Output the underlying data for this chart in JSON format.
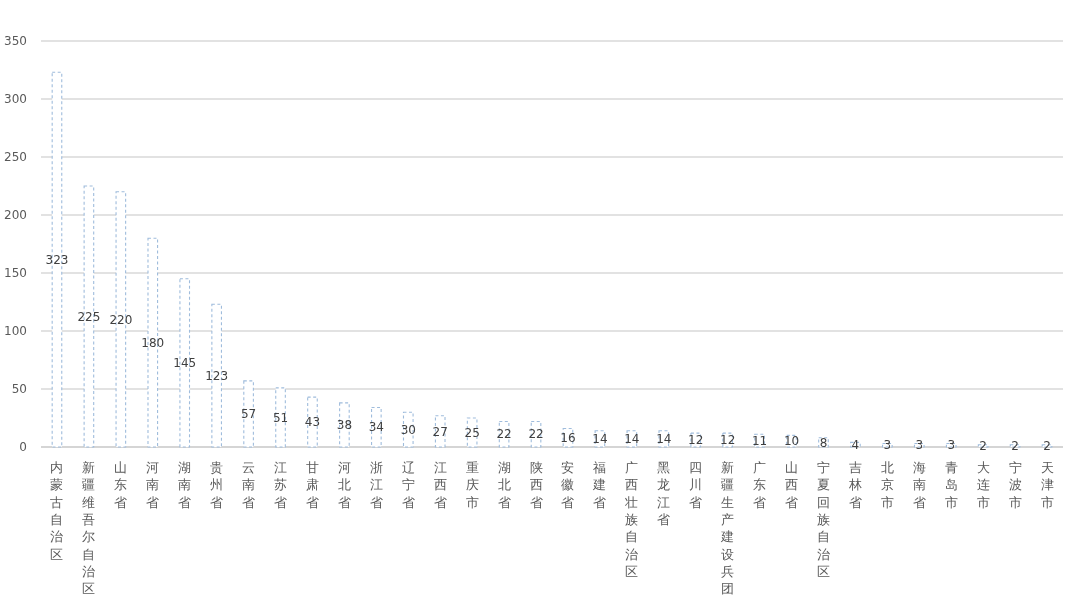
{
  "chart_data": {
    "type": "bar",
    "categories": [
      "内蒙古自治区",
      "新疆维吾尔自治区",
      "山东省",
      "河南省",
      "湖南省",
      "贵州省",
      "云南省",
      "江苏省",
      "甘肃省",
      "河北省",
      "浙江省",
      "辽宁省",
      "江西省",
      "重庆市",
      "湖北省",
      "陕西省",
      "安徽省",
      "福建省",
      "广西壮族自治区",
      "黑龙江省",
      "四川省",
      "新疆生产建设兵团",
      "广东省",
      "山西省",
      "宁夏回族自治区",
      "吉林省",
      "北京市",
      "海南省",
      "青岛市",
      "大连市",
      "宁波市",
      "天津市"
    ],
    "values": [
      323,
      225,
      220,
      180,
      145,
      123,
      57,
      51,
      43,
      38,
      34,
      30,
      27,
      25,
      22,
      22,
      16,
      14,
      14,
      14,
      12,
      12,
      11,
      10,
      8,
      4,
      3,
      3,
      3,
      2,
      2,
      2
    ],
    "color": "#9fbcdc",
    "ylim": [
      0,
      350
    ],
    "yticks": [
      0,
      50,
      100,
      150,
      200,
      250,
      300,
      350
    ],
    "grid": "y",
    "data_labels": true
  }
}
